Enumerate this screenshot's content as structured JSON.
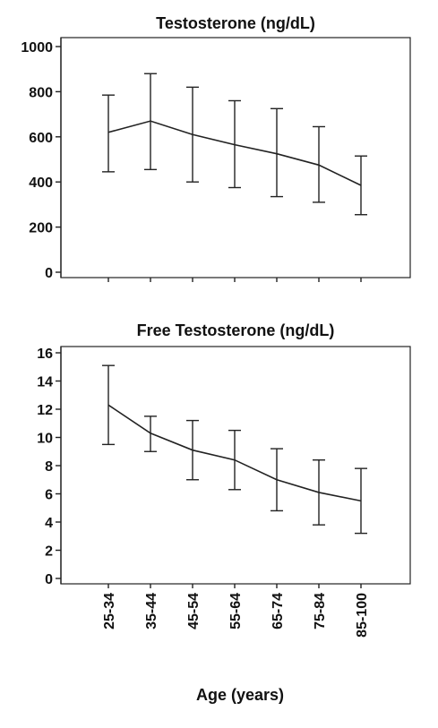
{
  "chart_data": [
    {
      "type": "line",
      "title": "Testosterone (ng/dL)",
      "categories": [
        "25-34",
        "35-44",
        "45-54",
        "55-64",
        "65-74",
        "75-84",
        "85-100"
      ],
      "values": [
        620,
        670,
        610,
        565,
        525,
        475,
        385
      ],
      "error_low": [
        445,
        455,
        400,
        375,
        335,
        310,
        255
      ],
      "error_high": [
        785,
        880,
        820,
        760,
        725,
        645,
        515
      ],
      "yticks": [
        0,
        200,
        400,
        600,
        800,
        1000
      ],
      "ylim": [
        0,
        1000
      ],
      "show_x_tick_labels": false
    },
    {
      "type": "line",
      "title": "Free Testosterone (ng/dL)",
      "categories": [
        "25-34",
        "35-44",
        "45-54",
        "55-64",
        "65-74",
        "75-84",
        "85-100"
      ],
      "values": [
        12.3,
        10.3,
        9.1,
        8.4,
        7.0,
        6.1,
        5.5
      ],
      "error_low": [
        9.5,
        9.0,
        7.0,
        6.3,
        4.8,
        3.8,
        3.2
      ],
      "error_high": [
        15.1,
        11.5,
        11.2,
        10.5,
        9.2,
        8.4,
        7.8
      ],
      "yticks": [
        0,
        2,
        4,
        6,
        8,
        10,
        12,
        14,
        16
      ],
      "ylim": [
        0,
        16
      ],
      "show_x_tick_labels": true
    }
  ],
  "xlabel": "Age (years)"
}
